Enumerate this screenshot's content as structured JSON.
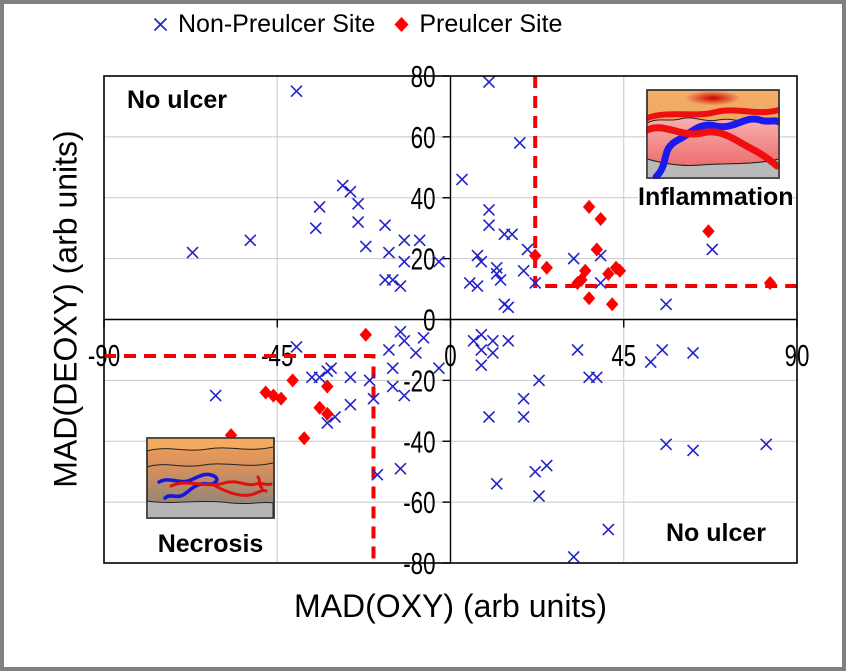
{
  "window": {
    "border_color": "#808080",
    "background": "#ffffff"
  },
  "chart_data": {
    "type": "scatter",
    "title": "",
    "xlabel": "MAD(OXY) (arb units)",
    "ylabel": "MAD(DEOXY) (arb units)",
    "xlim": [
      -90,
      90
    ],
    "ylim": [
      -80,
      80
    ],
    "x_ticks": [
      -90,
      -45,
      0,
      45,
      90
    ],
    "y_ticks": [
      80,
      60,
      40,
      20,
      0,
      -20,
      -40,
      -60,
      -80
    ],
    "grid": true,
    "gridline_color": "#c8c8c8",
    "axis_color": "#000000",
    "legend_position": "top-center",
    "series": [
      {
        "name": "Non-Preulcer Site",
        "marker": "x",
        "color": "#2323c8",
        "points": [
          [
            -40,
            75
          ],
          [
            -28,
            44
          ],
          [
            -26,
            42
          ],
          [
            -34,
            37
          ],
          [
            -24,
            38
          ],
          [
            -24,
            32
          ],
          [
            -35,
            30
          ],
          [
            -17,
            31
          ],
          [
            -52,
            26
          ],
          [
            -22,
            24
          ],
          [
            -12,
            26
          ],
          [
            -8,
            26
          ],
          [
            -67,
            22
          ],
          [
            -16,
            22
          ],
          [
            -12,
            19
          ],
          [
            -3,
            19
          ],
          [
            -17,
            13
          ],
          [
            -15,
            13
          ],
          [
            -13,
            11
          ],
          [
            10,
            78
          ],
          [
            18,
            58
          ],
          [
            3,
            46
          ],
          [
            10,
            36
          ],
          [
            10,
            31
          ],
          [
            14,
            28
          ],
          [
            16,
            28
          ],
          [
            20,
            23
          ],
          [
            7,
            21
          ],
          [
            8,
            19
          ],
          [
            12,
            17
          ],
          [
            12,
            15
          ],
          [
            13,
            13
          ],
          [
            19,
            16
          ],
          [
            22,
            12
          ],
          [
            5,
            12
          ],
          [
            7,
            11
          ],
          [
            32,
            20
          ],
          [
            39,
            21
          ],
          [
            39,
            12
          ],
          [
            68,
            23
          ],
          [
            56,
            5
          ],
          [
            14,
            5
          ],
          [
            15,
            4
          ],
          [
            -40,
            -9
          ],
          [
            -13,
            -4
          ],
          [
            -7,
            -6
          ],
          [
            -12,
            -7
          ],
          [
            -16,
            -10
          ],
          [
            -9,
            -11
          ],
          [
            -3,
            -16
          ],
          [
            -15,
            -16
          ],
          [
            -31,
            -16
          ],
          [
            -32,
            -17
          ],
          [
            -36,
            -19
          ],
          [
            -34,
            -19
          ],
          [
            -26,
            -19
          ],
          [
            -21,
            -20
          ],
          [
            -15,
            -22
          ],
          [
            -61,
            -25
          ],
          [
            -12,
            -25
          ],
          [
            -20,
            -26
          ],
          [
            -26,
            -28
          ],
          [
            -30,
            -32
          ],
          [
            -32,
            -34
          ],
          [
            -19,
            -51
          ],
          [
            -13,
            -49
          ],
          [
            8,
            -5
          ],
          [
            6,
            -7
          ],
          [
            11,
            -7
          ],
          [
            15,
            -7
          ],
          [
            8,
            -10
          ],
          [
            11,
            -11
          ],
          [
            8,
            -15
          ],
          [
            33,
            -10
          ],
          [
            52,
            -14
          ],
          [
            55,
            -10
          ],
          [
            63,
            -11
          ],
          [
            23,
            -20
          ],
          [
            36,
            -19
          ],
          [
            38,
            -19
          ],
          [
            19,
            -26
          ],
          [
            10,
            -32
          ],
          [
            19,
            -32
          ],
          [
            56,
            -41
          ],
          [
            63,
            -43
          ],
          [
            82,
            -41
          ],
          [
            22,
            -50
          ],
          [
            25,
            -48
          ],
          [
            12,
            -54
          ],
          [
            23,
            -58
          ],
          [
            41,
            -69
          ],
          [
            32,
            -78
          ]
        ]
      },
      {
        "name": "Preulcer Site",
        "marker": "diamond",
        "color": "#ff0000",
        "points": [
          [
            36,
            37
          ],
          [
            39,
            33
          ],
          [
            67,
            29
          ],
          [
            38,
            23
          ],
          [
            22,
            21
          ],
          [
            25,
            17
          ],
          [
            43,
            17
          ],
          [
            44,
            16
          ],
          [
            35,
            16
          ],
          [
            41,
            15
          ],
          [
            34,
            13
          ],
          [
            33,
            12
          ],
          [
            83,
            12
          ],
          [
            36,
            7
          ],
          [
            42,
            5
          ],
          [
            -22,
            -5
          ],
          [
            -41,
            -20
          ],
          [
            -32,
            -22
          ],
          [
            -48,
            -24
          ],
          [
            -46,
            -25
          ],
          [
            -44,
            -26
          ],
          [
            -34,
            -29
          ],
          [
            -32,
            -31
          ],
          [
            -57,
            -38
          ],
          [
            -38,
            -39
          ]
        ]
      }
    ],
    "thresholds": {
      "color": "#f40000",
      "style": "dashed",
      "inflammation": {
        "x": 22,
        "y": 11
      },
      "necrosis": {
        "x": -20,
        "y": -12
      }
    },
    "region_labels": [
      {
        "text": "No ulcer",
        "position": "top-left"
      },
      {
        "text": "Inflammation",
        "position": "top-right"
      },
      {
        "text": "Necrosis",
        "position": "bottom-left"
      },
      {
        "text": "No ulcer",
        "position": "bottom-right"
      }
    ]
  },
  "insets": [
    {
      "name": "inflammation-skin-illustration",
      "depicts": "skin cross-section, red surface spot, thick blue and red vessels"
    },
    {
      "name": "necrosis-skin-illustration",
      "depicts": "skin cross-section, dusky layers, thin blue and red vessels"
    }
  ]
}
